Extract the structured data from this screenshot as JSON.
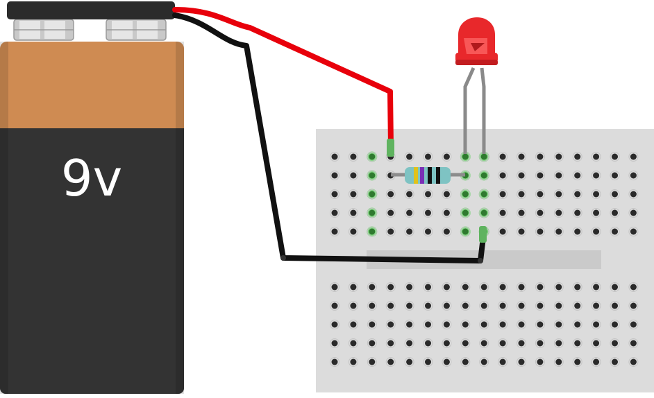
{
  "battery": {
    "label": "9v",
    "body_color": "#333333",
    "top_color": "#cf8b52",
    "cap_color": "#2b2b2b",
    "terminal_color": "#d9d9d9"
  },
  "wires": [
    {
      "name": "positive-wire",
      "color": "#e8000b"
    },
    {
      "name": "negative-wire",
      "color": "#111111"
    }
  ],
  "breadboard": {
    "color": "#dcdcdc",
    "hole_color": "#2a2a2a",
    "connected_color": "#86d886"
  },
  "resistor": {
    "body_color": "#7ec3c3",
    "bands": [
      "#e0c21a",
      "#7a2fb5",
      "#111111",
      "#111111"
    ]
  },
  "led": {
    "color": "#e8282b",
    "highlight_color": "#ff6b6b",
    "lead_color": "#8a8a8a"
  }
}
